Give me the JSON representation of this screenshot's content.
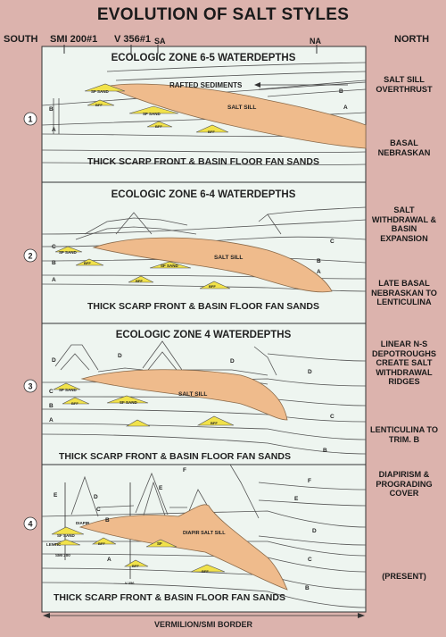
{
  "title": "EVOLUTION OF SALT STYLES",
  "header": {
    "south": "SOUTH",
    "north": "NORTH",
    "well_smi": "SMI 200#1",
    "well_v": "V 356#1",
    "well_sa": "SA",
    "well_na": "NA"
  },
  "panels": [
    {
      "number": "1",
      "zone_title": "ECOLOGIC ZONE 6-5 WATERDEPTHS",
      "bottom_label": "THICK SCARP FRONT & BASIN FLOOR FAN SANDS",
      "labels": {
        "rafted": "RAFTED SEDIMENTS",
        "salt": "SALT SILL",
        "sf1": "SF SAND",
        "sf2": "SF SAND",
        "bff1": "BFF",
        "bff2": "BFF",
        "bff3": "BFF",
        "b": "B",
        "a": "A",
        "b_right": "B",
        "a_right": "A"
      }
    },
    {
      "number": "2",
      "zone_title": "ECOLOGIC ZONE 6-4 WATERDEPTHS",
      "bottom_label": "THICK SCARP FRONT & BASIN FLOOR FAN SANDS",
      "labels": {
        "salt": "SALT SILL",
        "sf1": "SF SAND",
        "sf2": "SF SAND",
        "bff1": "BFF",
        "bff2": "BFF",
        "bff3": "BFF",
        "c": "C",
        "b": "B",
        "a": "A",
        "c_right": "C",
        "b_right": "B",
        "a_right": "A"
      }
    },
    {
      "number": "3",
      "zone_title": "ECOLOGIC ZONE 4 WATERDEPTHS",
      "bottom_label": "THICK SCARP FRONT & BASIN FLOOR FAN SANDS",
      "labels": {
        "salt": "SALT SILL",
        "sf1": "SF SAND",
        "sf2": "SF SAND",
        "bff1": "BFF",
        "bff2": "BFF",
        "d": "D",
        "c": "C",
        "b": "B",
        "a": "A",
        "d_right": "D",
        "c_right": "C",
        "b_right": "B",
        "d_mid": "D",
        "d_mid2": "D"
      }
    },
    {
      "number": "4",
      "zone_title": "",
      "bottom_label": "THICK SCARP FRONT & BASIN FLOOR FAN SANDS",
      "labels": {
        "salt": "DIAPIR SALT SILL",
        "diapir": "DIAPIR",
        "sf1": "SF SAND",
        "sf2": "SF",
        "lentic": "LENTIC",
        "smi200": "SMI 200",
        "v356": "V 356",
        "bff1": "BFF",
        "bff2": "BFF",
        "bff3": "BFF",
        "e": "E",
        "d": "D",
        "c": "C",
        "b": "B",
        "a": "A",
        "f_right": "F",
        "e_right": "E",
        "d_right": "D",
        "c_right": "C",
        "b_right": "B",
        "f_mid": "F",
        "e_mid": "E"
      }
    }
  ],
  "side_captions": [
    "SALT SILL OVERTHRUST",
    "BASAL NEBRASKAN",
    "SALT WITHDRAWAL & BASIN EXPANSION",
    "LATE BASAL NEBRASKAN TO LENTICULINA",
    "LINEAR N-S DEPOTROUGHS CREATE SALT WITHDRAWAL RIDGES",
    "LENTICULINA TO TRIM. B",
    "DIAPIRISM & PROGRADING COVER",
    "(PRESENT)"
  ],
  "footer": "VERMILION/SMI BORDER",
  "colors": {
    "background": "#dcb3ad",
    "panel": "#eef5f0",
    "salt": "#efbb8c",
    "sand": "#f1e24a",
    "line": "#555555"
  }
}
